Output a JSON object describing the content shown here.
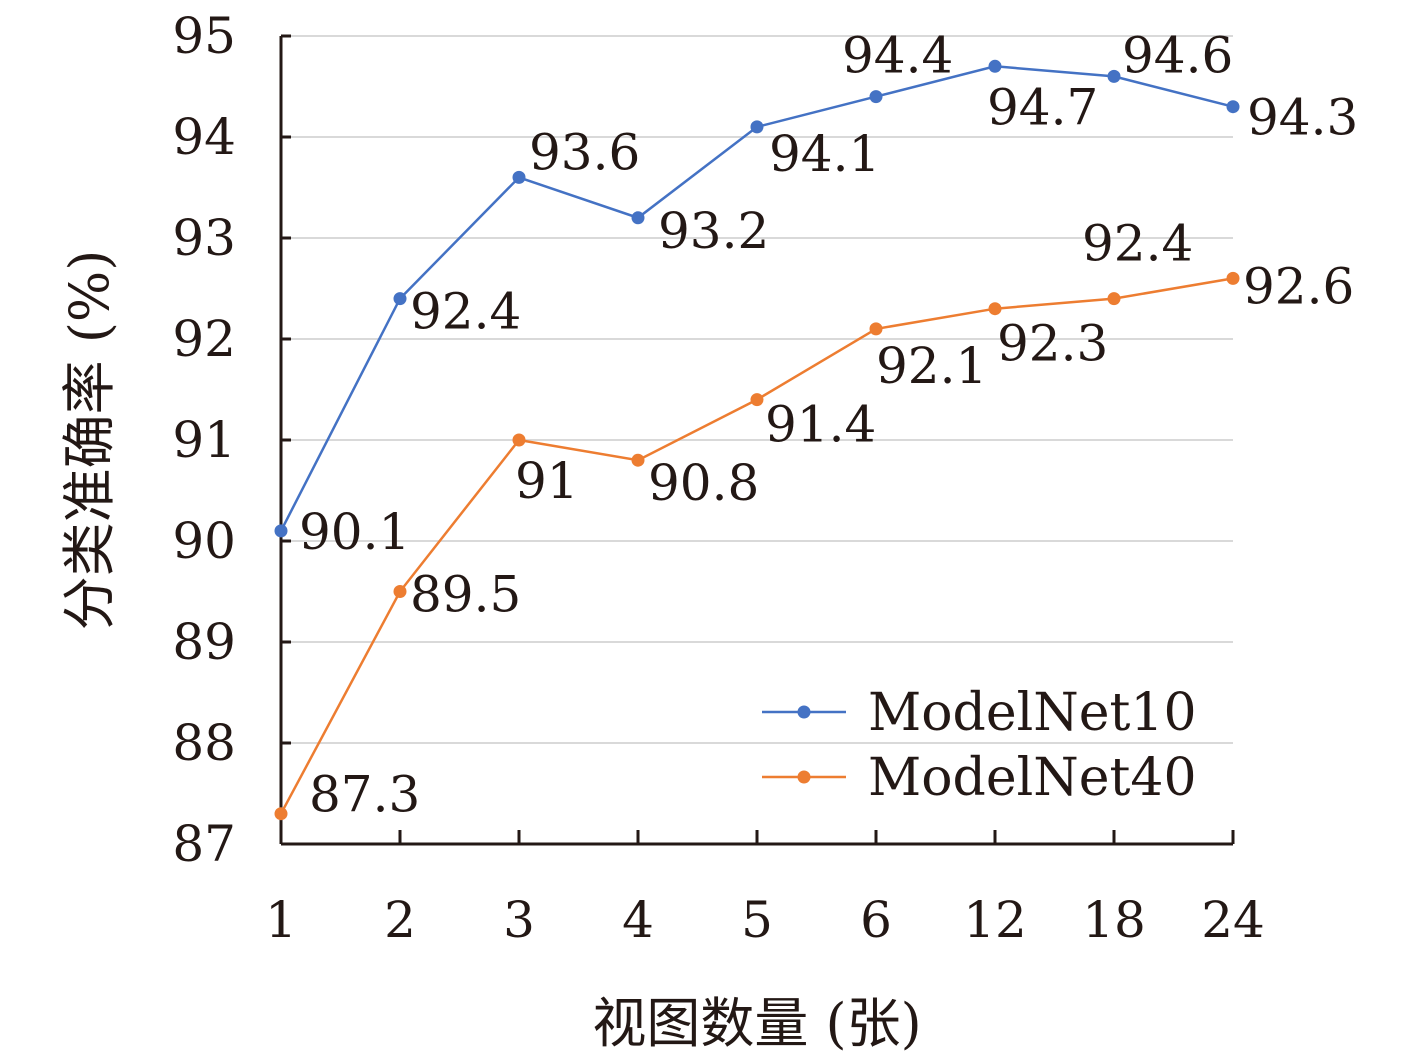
{
  "chart_data": {
    "type": "line",
    "title": "",
    "xlabel": "视图数量 (张)",
    "ylabel": "分类准确率 (%)",
    "categories": [
      "1",
      "2",
      "3",
      "4",
      "5",
      "6",
      "12",
      "18",
      "24"
    ],
    "ylim": [
      87,
      95
    ],
    "yticks": [
      "87",
      "88",
      "89",
      "90",
      "91",
      "92",
      "93",
      "94",
      "95"
    ],
    "grid": "horizontal",
    "legend_position": "bottom-right",
    "series": [
      {
        "name": "ModelNet10",
        "color": "#4472c4",
        "values": [
          90.1,
          92.4,
          93.6,
          93.2,
          94.1,
          94.4,
          94.7,
          94.6,
          94.3
        ],
        "labels": [
          "90.1",
          "92.4",
          "93.6",
          "93.2",
          "94.1",
          "94.4",
          "94.7",
          "94.6",
          "94.3"
        ]
      },
      {
        "name": "ModelNet40",
        "color": "#ed7d31",
        "values": [
          87.3,
          89.5,
          91.0,
          90.8,
          91.4,
          92.1,
          92.3,
          92.4,
          92.6
        ],
        "labels": [
          "87.3",
          "89.5",
          "91",
          "90.8",
          "91.4",
          "92.1",
          "92.3",
          "92.4",
          "92.6"
        ]
      }
    ]
  }
}
